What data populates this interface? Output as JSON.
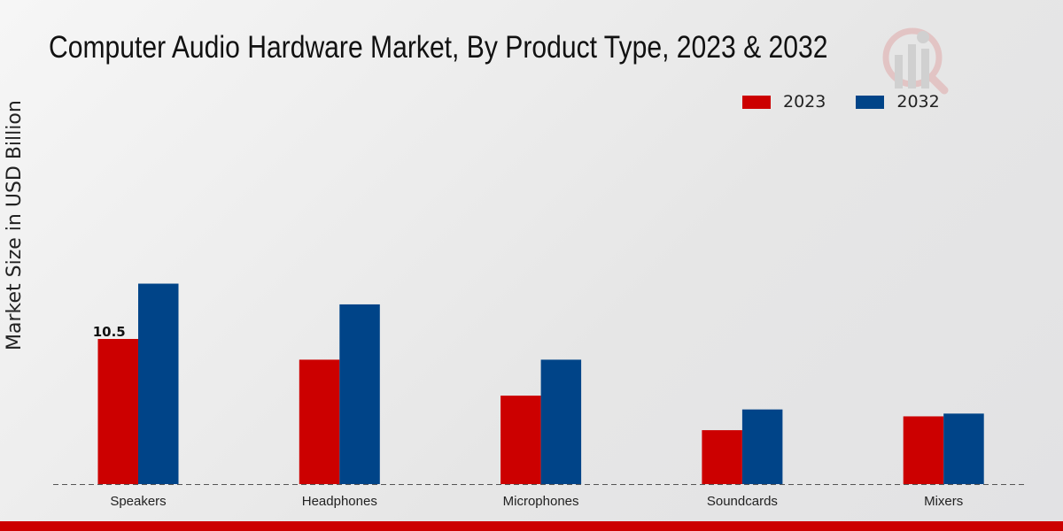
{
  "chart_data": {
    "type": "bar",
    "title": "Computer Audio Hardware Market, By Product Type, 2023 & 2032",
    "xlabel": "",
    "ylabel": "Market Size in USD Billion",
    "categories": [
      "Speakers",
      "Headphones",
      "Microphones",
      "Soundcards",
      "Mixers"
    ],
    "series": [
      {
        "name": "2023",
        "color": "#cc0000",
        "values": [
          10.5,
          9.0,
          6.4,
          3.9,
          4.9
        ]
      },
      {
        "name": "2032",
        "color": "#004488",
        "values": [
          14.5,
          13.0,
          9.0,
          5.4,
          5.1
        ]
      }
    ],
    "annotations": [
      {
        "series": "2023",
        "category": "Speakers",
        "label": "10.5"
      }
    ],
    "ylim": [
      0,
      20
    ],
    "grid": false,
    "legend_position": "top-right"
  }
}
